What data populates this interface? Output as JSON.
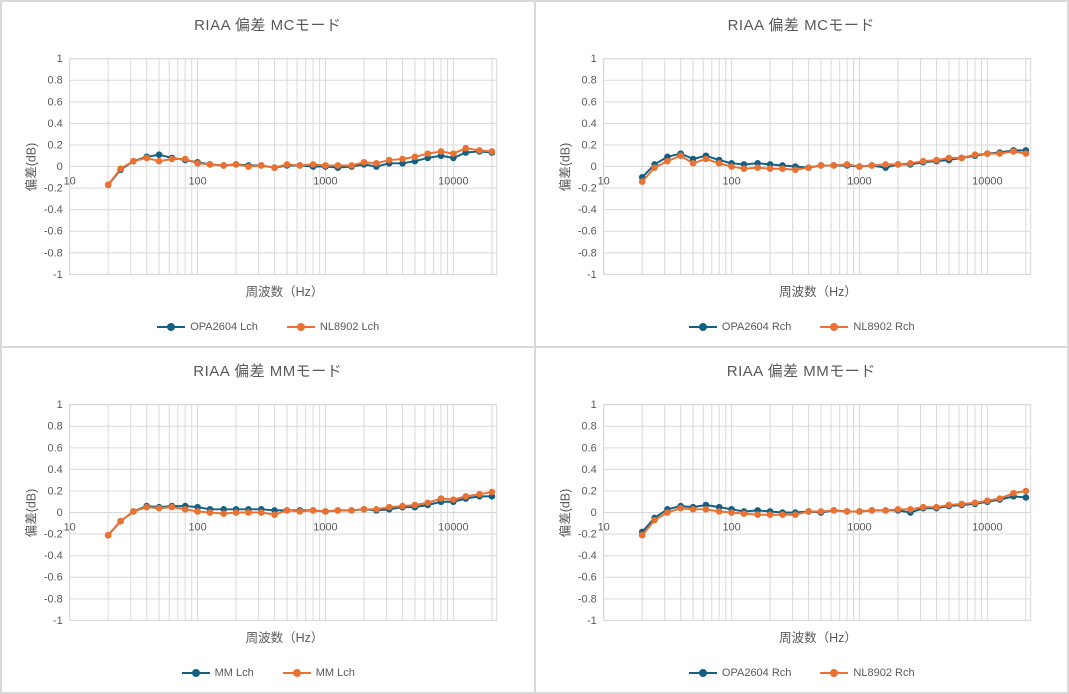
{
  "page": {
    "background": "#FFFFFF",
    "panel_border_color": "#D9D9D9",
    "grid_color": "#D9D9D9",
    "text_color": "#595959",
    "accent_blue": "#156082",
    "accent_orange": "#E97132"
  },
  "chart_data": [
    {
      "type": "line",
      "title": "RIAA 偏差 MCモード",
      "xlabel": "周波数（Hz）",
      "ylabel": "偏差(dB)",
      "x_scale": "log",
      "xlim": [
        10,
        21800
      ],
      "ylim": [
        -1,
        1
      ],
      "x_major_ticks": [
        10,
        100,
        1000,
        10000
      ],
      "y_ticks": [
        1,
        0.8,
        0.6,
        0.4,
        0.2,
        0,
        -0.2,
        -0.4,
        -0.6,
        -0.8,
        -1
      ],
      "grid": true,
      "legend_position": "bottom",
      "x": [
        20,
        25,
        31.5,
        40,
        50,
        63,
        80,
        100,
        125,
        160,
        200,
        250,
        315,
        400,
        500,
        630,
        800,
        1000,
        1250,
        1600,
        2000,
        2500,
        3150,
        4000,
        5000,
        6300,
        8000,
        10000,
        12500,
        16000,
        20000
      ],
      "series": [
        {
          "name": "OPA2604 Lch",
          "color": "#156082",
          "values": [
            -0.17,
            -0.03,
            0.05,
            0.09,
            0.11,
            0.08,
            0.06,
            0.04,
            0.02,
            0.01,
            0.02,
            0.01,
            0.01,
            -0.01,
            0.01,
            0.01,
            0.0,
            0.0,
            -0.01,
            0.0,
            0.02,
            0.0,
            0.03,
            0.03,
            0.05,
            0.08,
            0.1,
            0.08,
            0.13,
            0.14,
            0.13
          ]
        },
        {
          "name": "NL8902 Lch",
          "color": "#E97132",
          "values": [
            -0.17,
            -0.02,
            0.05,
            0.08,
            0.05,
            0.07,
            0.07,
            0.03,
            0.02,
            0.01,
            0.02,
            0.0,
            0.01,
            -0.01,
            0.02,
            0.01,
            0.02,
            0.01,
            0.01,
            0.01,
            0.04,
            0.03,
            0.06,
            0.07,
            0.09,
            0.12,
            0.14,
            0.12,
            0.17,
            0.15,
            0.14
          ]
        }
      ]
    },
    {
      "type": "line",
      "title": "RIAA 偏差 MCモード",
      "xlabel": "周波数（Hz）",
      "ylabel": "偏差(dB)",
      "x_scale": "log",
      "xlim": [
        10,
        21800
      ],
      "ylim": [
        -1,
        1
      ],
      "x_major_ticks": [
        10,
        100,
        1000,
        10000
      ],
      "y_ticks": [
        1,
        0.8,
        0.6,
        0.4,
        0.2,
        0,
        -0.2,
        -0.4,
        -0.6,
        -0.8,
        -1
      ],
      "grid": true,
      "legend_position": "bottom",
      "x": [
        20,
        25,
        31.5,
        40,
        50,
        63,
        80,
        100,
        125,
        160,
        200,
        250,
        315,
        400,
        500,
        630,
        800,
        1000,
        1250,
        1600,
        2000,
        2500,
        3150,
        4000,
        5000,
        6300,
        8000,
        10000,
        12500,
        16000,
        20000
      ],
      "series": [
        {
          "name": "OPA2604 Rch",
          "color": "#156082",
          "values": [
            -0.1,
            0.02,
            0.09,
            0.12,
            0.07,
            0.1,
            0.06,
            0.03,
            0.02,
            0.03,
            0.02,
            0.01,
            0.0,
            -0.01,
            0.01,
            0.01,
            0.01,
            0.0,
            0.01,
            -0.01,
            0.02,
            0.02,
            0.04,
            0.05,
            0.06,
            0.08,
            0.1,
            0.12,
            0.13,
            0.15,
            0.15
          ]
        },
        {
          "name": "NL8902 Rch",
          "color": "#E97132",
          "values": [
            -0.14,
            -0.01,
            0.05,
            0.1,
            0.03,
            0.07,
            0.03,
            0.0,
            -0.02,
            -0.01,
            -0.02,
            -0.02,
            -0.03,
            -0.01,
            0.01,
            0.01,
            0.02,
            0.0,
            0.01,
            0.02,
            0.02,
            0.03,
            0.05,
            0.06,
            0.08,
            0.08,
            0.11,
            0.12,
            0.12,
            0.14,
            0.12
          ]
        }
      ]
    },
    {
      "type": "line",
      "title": "RIAA 偏差 MMモード",
      "xlabel": "周波数（Hz）",
      "ylabel": "偏差(dB)",
      "x_scale": "log",
      "xlim": [
        10,
        21800
      ],
      "ylim": [
        -1,
        1
      ],
      "x_major_ticks": [
        10,
        100,
        1000,
        10000
      ],
      "y_ticks": [
        1,
        0.8,
        0.6,
        0.4,
        0.2,
        0,
        -0.2,
        -0.4,
        -0.6,
        -0.8,
        -1
      ],
      "grid": true,
      "legend_position": "bottom",
      "x": [
        20,
        25,
        31.5,
        40,
        50,
        63,
        80,
        100,
        125,
        160,
        200,
        250,
        315,
        400,
        500,
        630,
        800,
        1000,
        1250,
        1600,
        2000,
        2500,
        3150,
        4000,
        5000,
        6300,
        8000,
        10000,
        12500,
        16000,
        20000
      ],
      "series": [
        {
          "name": "MM Lch",
          "color": "#156082",
          "values": [
            -0.21,
            -0.08,
            0.01,
            0.06,
            0.05,
            0.06,
            0.06,
            0.05,
            0.03,
            0.03,
            0.03,
            0.03,
            0.03,
            0.02,
            0.02,
            0.02,
            0.02,
            0.01,
            0.02,
            0.02,
            0.03,
            0.02,
            0.03,
            0.05,
            0.05,
            0.07,
            0.1,
            0.1,
            0.13,
            0.15,
            0.15
          ]
        },
        {
          "name": "MM Lch",
          "color": "#E97132",
          "values": [
            -0.21,
            -0.08,
            0.01,
            0.05,
            0.04,
            0.05,
            0.03,
            0.01,
            0.0,
            -0.01,
            0.0,
            0.0,
            0.0,
            -0.02,
            0.02,
            0.01,
            0.02,
            0.01,
            0.02,
            0.02,
            0.03,
            0.03,
            0.05,
            0.06,
            0.07,
            0.09,
            0.13,
            0.12,
            0.15,
            0.17,
            0.19
          ]
        }
      ]
    },
    {
      "type": "line",
      "title": "RIAA 偏差 MMモード",
      "xlabel": "周波数（Hz）",
      "ylabel": "偏差(dB)",
      "x_scale": "log",
      "xlim": [
        10,
        21800
      ],
      "ylim": [
        -1,
        1
      ],
      "x_major_ticks": [
        10,
        100,
        1000,
        10000
      ],
      "y_ticks": [
        1,
        0.8,
        0.6,
        0.4,
        0.2,
        0,
        -0.2,
        -0.4,
        -0.6,
        -0.8,
        -1
      ],
      "grid": true,
      "legend_position": "bottom",
      "x": [
        20,
        25,
        31.5,
        40,
        50,
        63,
        80,
        100,
        125,
        160,
        200,
        250,
        315,
        400,
        500,
        630,
        800,
        1000,
        1250,
        1600,
        2000,
        2500,
        3150,
        4000,
        5000,
        6300,
        8000,
        10000,
        12500,
        16000,
        20000
      ],
      "series": [
        {
          "name": "OPA2604 Rch",
          "color": "#156082",
          "values": [
            -0.18,
            -0.05,
            0.03,
            0.06,
            0.05,
            0.07,
            0.05,
            0.03,
            0.01,
            0.02,
            0.01,
            0.0,
            0.0,
            0.01,
            0.0,
            0.02,
            0.01,
            0.01,
            0.02,
            0.02,
            0.02,
            0.0,
            0.04,
            0.04,
            0.06,
            0.07,
            0.08,
            0.1,
            0.12,
            0.15,
            0.14
          ]
        },
        {
          "name": "NL8902 Rch",
          "color": "#E97132",
          "values": [
            -0.21,
            -0.07,
            0.0,
            0.04,
            0.03,
            0.03,
            0.01,
            0.0,
            -0.01,
            -0.02,
            -0.02,
            -0.02,
            -0.02,
            0.01,
            0.01,
            0.02,
            0.01,
            0.01,
            0.02,
            0.02,
            0.03,
            0.03,
            0.05,
            0.05,
            0.07,
            0.08,
            0.09,
            0.11,
            0.13,
            0.18,
            0.2
          ]
        }
      ]
    }
  ]
}
